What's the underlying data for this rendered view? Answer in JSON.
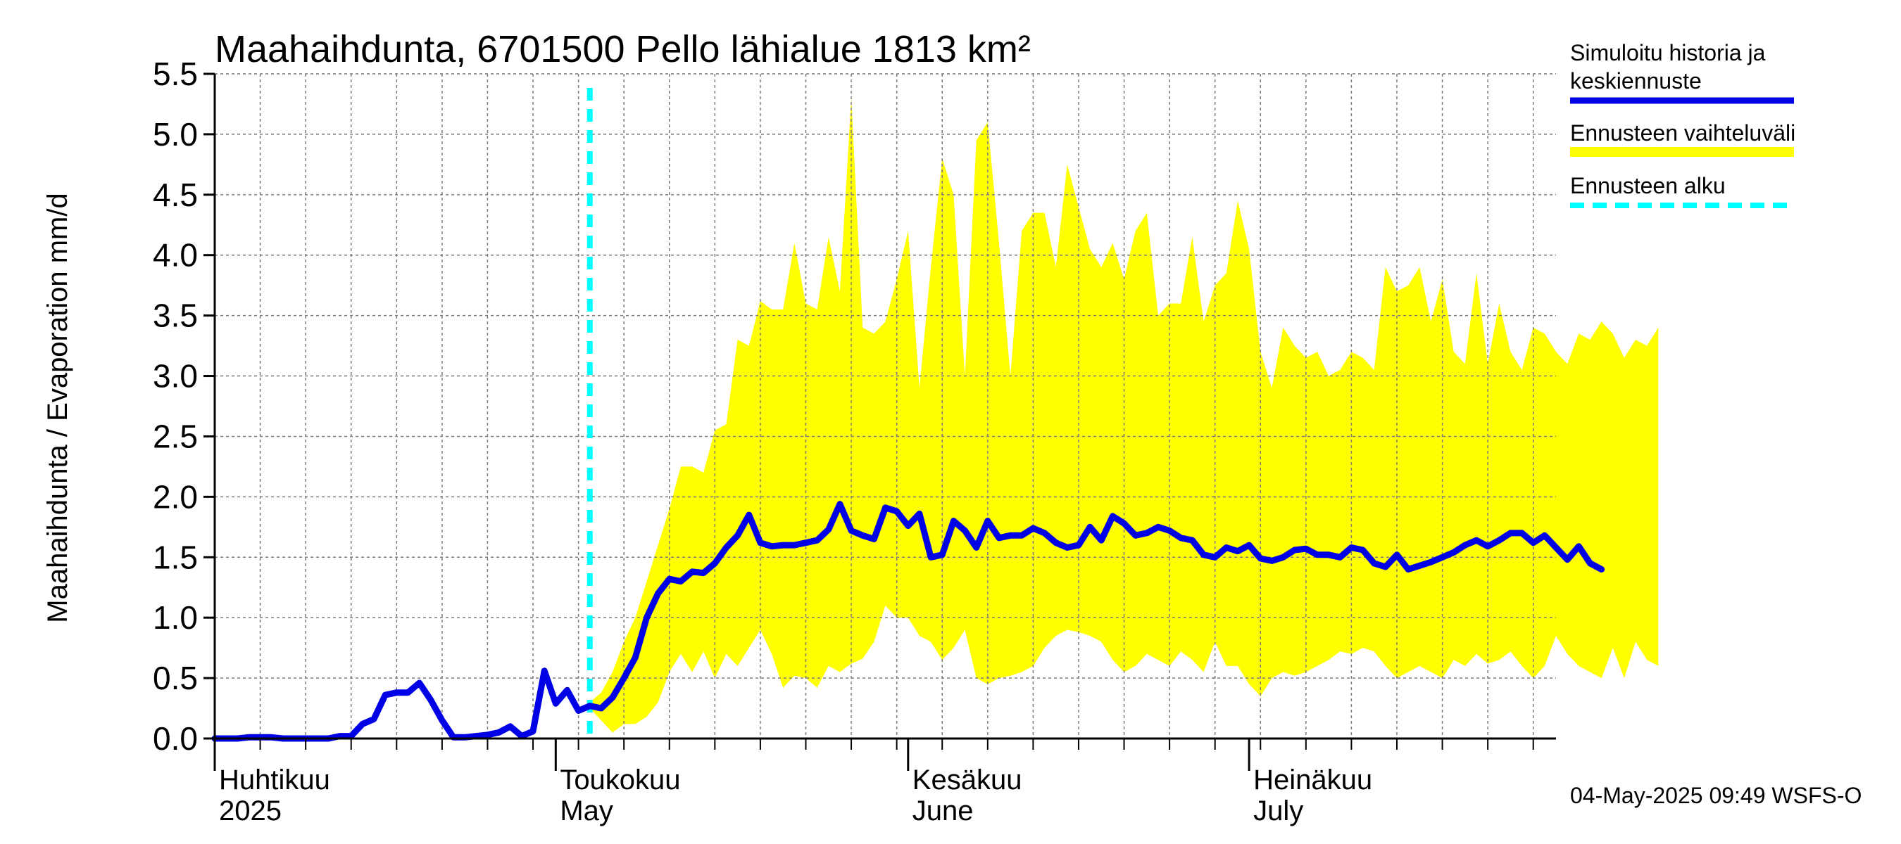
{
  "chart_data": {
    "type": "area",
    "title": "Maahaihdunta, 6701500 Pello lähialue 1813 km²",
    "ylabel": "Maahaihdunta / Evaporation   mm/d",
    "ylim": [
      0,
      5.5
    ],
    "yticks": [
      "0.0",
      "0.5",
      "1.0",
      "1.5",
      "2.0",
      "2.5",
      "3.0",
      "3.5",
      "4.0",
      "4.5",
      "5.0",
      "5.5"
    ],
    "grid": true,
    "legend_position": "right",
    "forecast_start": "2025-05-04",
    "months": [
      {
        "date": "2025-04-01",
        "label_fi": "Huhtikuu",
        "label_en": "2025"
      },
      {
        "date": "2025-05-01",
        "label_fi": "Toukokuu",
        "label_en": "May"
      },
      {
        "date": "2025-06-01",
        "label_fi": "Kesäkuu",
        "label_en": "June"
      },
      {
        "date": "2025-07-01",
        "label_fi": "Heinäkuu",
        "label_en": "July"
      }
    ],
    "x_start": "2025-04-01",
    "x_end": "2025-07-28",
    "series": [
      {
        "name": "Simuloitu historia ja keskiennuste",
        "color": "#0000e6",
        "values": [
          0.0,
          0.0,
          0.0,
          0.01,
          0.01,
          0.01,
          0.0,
          0.0,
          0.0,
          0.0,
          0.0,
          0.02,
          0.02,
          0.12,
          0.16,
          0.36,
          0.38,
          0.38,
          0.46,
          0.32,
          0.15,
          0.01,
          0.01,
          0.02,
          0.03,
          0.05,
          0.1,
          0.02,
          0.06,
          0.56,
          0.29,
          0.4,
          0.23,
          0.27,
          0.25,
          0.34,
          0.5,
          0.67,
          1.0,
          1.2,
          1.32,
          1.3,
          1.38,
          1.37,
          1.45,
          1.58,
          1.68,
          1.85,
          1.62,
          1.59,
          1.6,
          1.6,
          1.62,
          1.64,
          1.73,
          1.94,
          1.72,
          1.68,
          1.65,
          1.91,
          1.88,
          1.76,
          1.86,
          1.5,
          1.52,
          1.8,
          1.72,
          1.58,
          1.8,
          1.66,
          1.68,
          1.68,
          1.74,
          1.7,
          1.62,
          1.58,
          1.6,
          1.75,
          1.64,
          1.84,
          1.78,
          1.68,
          1.7,
          1.75,
          1.72,
          1.66,
          1.64,
          1.52,
          1.5,
          1.58,
          1.55,
          1.6,
          1.49,
          1.47,
          1.5,
          1.56,
          1.57,
          1.52,
          1.52,
          1.5,
          1.58,
          1.56,
          1.45,
          1.42,
          1.52,
          1.4,
          1.43,
          1.46,
          1.5,
          1.54,
          1.6,
          1.64,
          1.59,
          1.64,
          1.7,
          1.7,
          1.62,
          1.68,
          1.58,
          1.48,
          1.59,
          1.45,
          1.4
        ]
      },
      {
        "name": "Ennusteen vaihteluväli",
        "color": "#ffff00",
        "start": "2025-05-04",
        "upper": [
          0.3,
          0.38,
          0.55,
          0.8,
          1.0,
          1.3,
          1.6,
          1.9,
          2.25,
          2.25,
          2.2,
          2.55,
          2.6,
          3.3,
          3.25,
          3.62,
          3.55,
          3.55,
          4.1,
          3.6,
          3.55,
          4.15,
          3.7,
          5.3,
          3.4,
          3.35,
          3.45,
          3.8,
          4.2,
          2.9,
          3.9,
          4.8,
          4.5,
          3.0,
          4.95,
          5.1,
          4.1,
          3.0,
          4.2,
          4.35,
          4.35,
          3.9,
          4.75,
          4.4,
          4.05,
          3.9,
          4.1,
          3.8,
          4.2,
          4.35,
          3.5,
          3.6,
          3.6,
          4.15,
          3.45,
          3.75,
          3.85,
          4.45,
          4.05,
          3.2,
          2.9,
          3.4,
          3.25,
          3.15,
          3.2,
          3.0,
          3.05,
          3.2,
          3.15,
          3.05,
          3.9,
          3.7,
          3.75,
          3.9,
          3.45,
          3.8,
          3.2,
          3.1,
          3.85,
          3.1,
          3.6,
          3.2,
          3.05,
          3.4,
          3.35,
          3.2,
          3.1,
          3.35,
          3.3,
          3.45,
          3.35,
          3.15,
          3.3,
          3.25,
          3.4
        ]
      },
      {
        "name": "Ennusteen vaihteluväli",
        "color": "#ffff00",
        "start": "2025-05-04",
        "lower": [
          0.25,
          0.15,
          0.05,
          0.12,
          0.12,
          0.18,
          0.3,
          0.55,
          0.7,
          0.55,
          0.72,
          0.5,
          0.7,
          0.6,
          0.75,
          0.9,
          0.7,
          0.42,
          0.52,
          0.5,
          0.42,
          0.6,
          0.55,
          0.62,
          0.66,
          0.8,
          1.1,
          1.0,
          1.0,
          0.85,
          0.8,
          0.65,
          0.75,
          0.9,
          0.5,
          0.45,
          0.5,
          0.52,
          0.55,
          0.6,
          0.75,
          0.85,
          0.9,
          0.88,
          0.85,
          0.8,
          0.65,
          0.55,
          0.6,
          0.7,
          0.65,
          0.6,
          0.72,
          0.65,
          0.55,
          0.8,
          0.6,
          0.6,
          0.45,
          0.35,
          0.5,
          0.55,
          0.52,
          0.55,
          0.6,
          0.65,
          0.72,
          0.7,
          0.75,
          0.72,
          0.6,
          0.5,
          0.55,
          0.6,
          0.55,
          0.5,
          0.65,
          0.6,
          0.7,
          0.62,
          0.65,
          0.72,
          0.6,
          0.5,
          0.6,
          0.85,
          0.7,
          0.6,
          0.55,
          0.5,
          0.75,
          0.5,
          0.8,
          0.65,
          0.6
        ]
      }
    ]
  },
  "legend": {
    "history_line1": "Simuloitu historia ja",
    "history_line2": "keskiennuste",
    "range": "Ennusteen vaihteluväli",
    "forecast_start": "Ennusteen alku"
  },
  "footer": "04-May-2025 09:49 WSFS-O",
  "colors": {
    "history": "#0000e6",
    "range": "#ffff00",
    "forecast_start": "#00ffff",
    "grid": "#7a7a7a"
  }
}
